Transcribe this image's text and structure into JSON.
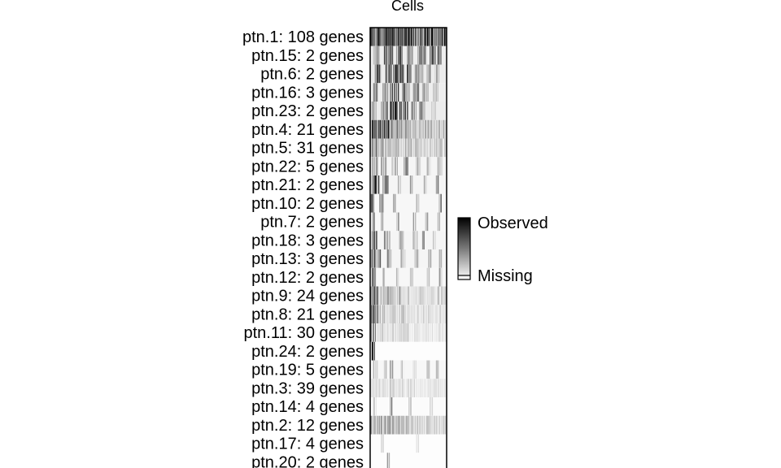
{
  "chart_data": {
    "type": "heatmap",
    "title": "Cells",
    "rows": [
      {
        "label": "ptn.1: 108 genes",
        "density": 0.95,
        "cols": [
          [
            0,
            100,
            0.95
          ]
        ]
      },
      {
        "label": "ptn.15: 2 genes",
        "density": 0.45,
        "cols": [
          [
            4,
            12,
            0.5
          ],
          [
            18,
            30,
            0.6
          ],
          [
            34,
            42,
            0.7
          ],
          [
            48,
            56,
            0.5
          ],
          [
            62,
            74,
            0.6
          ],
          [
            78,
            86,
            0.9
          ],
          [
            88,
            94,
            0.8
          ]
        ]
      },
      {
        "label": "ptn.6: 2 genes",
        "density": 0.5,
        "cols": [
          [
            6,
            14,
            0.6
          ],
          [
            20,
            28,
            0.7
          ],
          [
            30,
            44,
            0.9
          ],
          [
            48,
            54,
            0.6
          ],
          [
            58,
            70,
            0.5
          ],
          [
            74,
            80,
            0.4
          ],
          [
            84,
            90,
            0.3
          ]
        ]
      },
      {
        "label": "ptn.16: 3 genes",
        "density": 0.45,
        "cols": [
          [
            4,
            10,
            0.5
          ],
          [
            16,
            24,
            0.6
          ],
          [
            26,
            38,
            0.8
          ],
          [
            42,
            52,
            0.6
          ],
          [
            56,
            64,
            0.5
          ],
          [
            68,
            76,
            0.4
          ],
          [
            82,
            90,
            0.3
          ]
        ]
      },
      {
        "label": "ptn.23: 2 genes",
        "density": 0.5,
        "cols": [
          [
            2,
            8,
            0.4
          ],
          [
            14,
            24,
            0.6
          ],
          [
            26,
            36,
            0.8
          ],
          [
            38,
            50,
            0.9
          ],
          [
            54,
            60,
            0.6
          ],
          [
            64,
            72,
            0.4
          ],
          [
            80,
            86,
            0.3
          ]
        ]
      },
      {
        "label": "ptn.4: 21 genes",
        "density": 0.4,
        "cols": [
          [
            0,
            30,
            0.65
          ],
          [
            30,
            60,
            0.45
          ],
          [
            60,
            100,
            0.3
          ]
        ]
      },
      {
        "label": "ptn.5: 31 genes",
        "density": 0.3,
        "cols": [
          [
            0,
            20,
            0.5
          ],
          [
            20,
            60,
            0.3
          ],
          [
            60,
            100,
            0.2
          ]
        ]
      },
      {
        "label": "ptn.22: 5 genes",
        "density": 0.25,
        "cols": [
          [
            2,
            10,
            0.6
          ],
          [
            14,
            22,
            0.4
          ],
          [
            28,
            36,
            0.3
          ],
          [
            44,
            50,
            0.4
          ],
          [
            60,
            66,
            0.3
          ],
          [
            74,
            80,
            0.25
          ],
          [
            88,
            94,
            0.3
          ]
        ]
      },
      {
        "label": "ptn.21: 2 genes",
        "density": 0.25,
        "cols": [
          [
            2,
            12,
            0.7
          ],
          [
            16,
            24,
            0.5
          ],
          [
            36,
            40,
            0.4
          ],
          [
            52,
            56,
            0.35
          ],
          [
            70,
            74,
            0.3
          ],
          [
            86,
            90,
            0.4
          ]
        ]
      },
      {
        "label": "ptn.10: 2 genes",
        "density": 0.2,
        "cols": [
          [
            0,
            6,
            0.8
          ],
          [
            12,
            18,
            0.4
          ],
          [
            30,
            34,
            0.3
          ],
          [
            60,
            64,
            0.3
          ],
          [
            90,
            94,
            0.6
          ]
        ]
      },
      {
        "label": "ptn.7: 2 genes",
        "density": 0.2,
        "cols": [
          [
            2,
            6,
            0.5
          ],
          [
            14,
            18,
            0.4
          ],
          [
            34,
            38,
            0.3
          ],
          [
            56,
            60,
            0.35
          ],
          [
            72,
            76,
            0.3
          ],
          [
            88,
            92,
            0.4
          ]
        ]
      },
      {
        "label": "ptn.18: 3 genes",
        "density": 0.25,
        "cols": [
          [
            2,
            10,
            0.6
          ],
          [
            18,
            26,
            0.4
          ],
          [
            38,
            44,
            0.35
          ],
          [
            56,
            62,
            0.4
          ],
          [
            68,
            72,
            0.5
          ],
          [
            82,
            86,
            0.4
          ]
        ]
      },
      {
        "label": "ptn.13: 3 genes",
        "density": 0.25,
        "cols": [
          [
            0,
            14,
            0.6
          ],
          [
            22,
            28,
            0.4
          ],
          [
            40,
            46,
            0.35
          ],
          [
            58,
            64,
            0.3
          ],
          [
            76,
            80,
            0.3
          ],
          [
            90,
            94,
            0.35
          ]
        ]
      },
      {
        "label": "ptn.12: 2 genes",
        "density": 0.2,
        "cols": [
          [
            2,
            8,
            0.5
          ],
          [
            16,
            20,
            0.35
          ],
          [
            34,
            38,
            0.3
          ],
          [
            52,
            56,
            0.3
          ],
          [
            74,
            78,
            0.3
          ],
          [
            90,
            94,
            0.3
          ]
        ]
      },
      {
        "label": "ptn.9: 24 genes",
        "density": 0.3,
        "cols": [
          [
            0,
            10,
            0.75
          ],
          [
            10,
            40,
            0.3
          ],
          [
            40,
            100,
            0.2
          ]
        ]
      },
      {
        "label": "ptn.8: 21 genes",
        "density": 0.25,
        "cols": [
          [
            0,
            10,
            0.6
          ],
          [
            10,
            45,
            0.25
          ],
          [
            45,
            100,
            0.15
          ]
        ]
      },
      {
        "label": "ptn.11: 30 genes",
        "density": 0.2,
        "cols": [
          [
            0,
            8,
            0.5
          ],
          [
            8,
            50,
            0.2
          ],
          [
            50,
            100,
            0.12
          ]
        ]
      },
      {
        "label": "ptn.24: 2 genes",
        "density": 0.05,
        "cols": [
          [
            2,
            6,
            0.95
          ]
        ]
      },
      {
        "label": "ptn.19: 5 genes",
        "density": 0.2,
        "cols": [
          [
            4,
            10,
            0.3
          ],
          [
            18,
            22,
            0.3
          ],
          [
            26,
            30,
            0.7
          ],
          [
            40,
            44,
            0.3
          ],
          [
            56,
            60,
            0.25
          ],
          [
            74,
            78,
            0.25
          ],
          [
            86,
            90,
            0.3
          ]
        ]
      },
      {
        "label": "ptn.3: 39 genes",
        "density": 0.15,
        "cols": [
          [
            0,
            30,
            0.2
          ],
          [
            30,
            60,
            0.15
          ],
          [
            60,
            100,
            0.1
          ]
        ]
      },
      {
        "label": "ptn.14: 4 genes",
        "density": 0.1,
        "cols": [
          [
            4,
            8,
            0.3
          ],
          [
            26,
            30,
            0.4
          ],
          [
            50,
            54,
            0.2
          ],
          [
            78,
            82,
            0.2
          ]
        ]
      },
      {
        "label": "ptn.2: 12 genes",
        "density": 0.25,
        "cols": [
          [
            0,
            40,
            0.35
          ],
          [
            40,
            70,
            0.25
          ],
          [
            70,
            100,
            0.2
          ]
        ]
      },
      {
        "label": "ptn.17: 4 genes",
        "density": 0.05,
        "cols": [
          [
            14,
            18,
            0.25
          ],
          [
            60,
            64,
            0.15
          ]
        ]
      },
      {
        "label": "ptn.20: 2 genes",
        "density": 0.05,
        "cols": [
          [
            22,
            26,
            0.3
          ]
        ]
      }
    ],
    "legend": {
      "high_label": "Observed",
      "low_label": "Missing",
      "colors": [
        "#000000",
        "#ffffff"
      ]
    }
  }
}
